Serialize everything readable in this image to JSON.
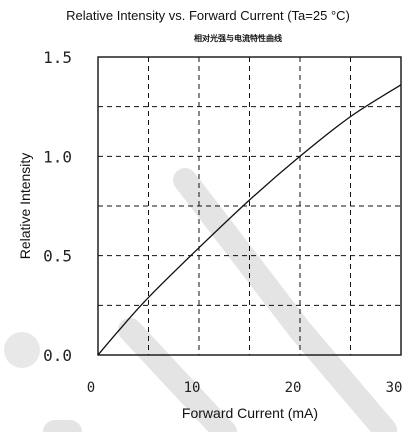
{
  "chart_data": {
    "type": "line",
    "title": "Relative Intensity vs. Forward Current (Ta=25 °C)",
    "subtitle": "相对光强与电流特性曲线",
    "xlabel": "Forward Current (mA)",
    "ylabel": "Relative Intensity",
    "xlim": [
      0,
      30
    ],
    "ylim": [
      0,
      1.5
    ],
    "x_ticks": [
      0,
      10,
      20,
      30
    ],
    "x_tick_labels": [
      "0",
      "10",
      "20",
      "30"
    ],
    "y_ticks": [
      0,
      0.5,
      1.0,
      1.5
    ],
    "y_tick_labels": [
      "0.0",
      "0.5",
      "1.0",
      "1.5"
    ],
    "x_grid": [
      5,
      10,
      15,
      20,
      25
    ],
    "y_grid": [
      0.25,
      0.5,
      0.75,
      1.0,
      1.25
    ],
    "grid": true,
    "series": [
      {
        "x": [
          0,
          2,
          5,
          10,
          15,
          20,
          25,
          30
        ],
        "values": [
          0,
          0.12,
          0.29,
          0.54,
          0.78,
          1.0,
          1.2,
          1.36
        ]
      }
    ],
    "colors": {
      "line": "#111111",
      "grid": "#111111"
    }
  }
}
